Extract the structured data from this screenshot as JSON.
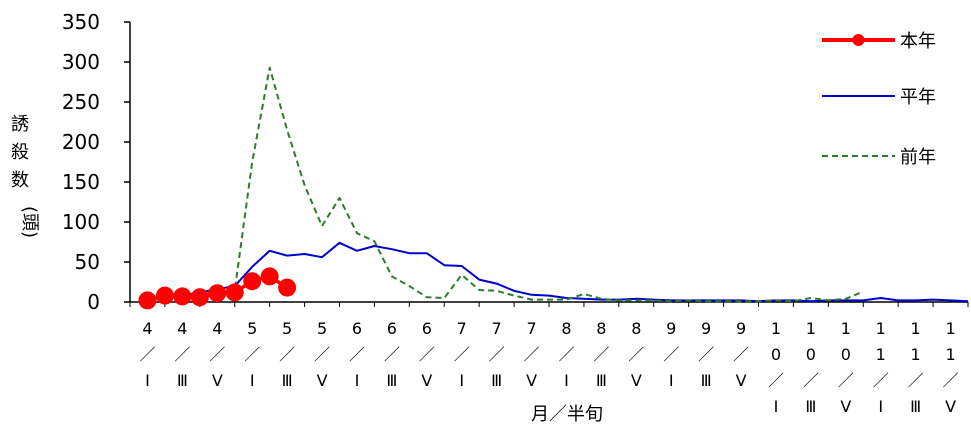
{
  "chart_data": {
    "type": "line",
    "xlabel": "月／半旬",
    "ylabel": "誘殺数(頭)",
    "ylim": [
      0,
      350
    ],
    "yticks": [
      0,
      50,
      100,
      150,
      200,
      250,
      300,
      350
    ],
    "grid": false,
    "legend_position": "top-right",
    "categories": [
      "4/I",
      "4/III",
      "4/V",
      "5/I",
      "5/III",
      "5/V",
      "6/I",
      "6/III",
      "6/V",
      "7/I",
      "7/III",
      "7/V",
      "8/I",
      "8/III",
      "8/V",
      "9/I",
      "9/III",
      "9/V",
      "10/I",
      "10/III",
      "10/V",
      "11/I",
      "11/III",
      "11/V"
    ],
    "category_label_lines": [
      [
        "4",
        "／",
        "Ⅰ"
      ],
      [
        "4",
        "／",
        "Ⅲ"
      ],
      [
        "4",
        "／",
        "Ⅴ"
      ],
      [
        "5",
        "／",
        "Ⅰ"
      ],
      [
        "5",
        "／",
        "Ⅲ"
      ],
      [
        "5",
        "／",
        "Ⅴ"
      ],
      [
        "6",
        "／",
        "Ⅰ"
      ],
      [
        "6",
        "／",
        "Ⅲ"
      ],
      [
        "6",
        "／",
        "Ⅴ"
      ],
      [
        "7",
        "／",
        "Ⅰ"
      ],
      [
        "7",
        "／",
        "Ⅲ"
      ],
      [
        "7",
        "／",
        "Ⅴ"
      ],
      [
        "8",
        "／",
        "Ⅰ"
      ],
      [
        "8",
        "／",
        "Ⅲ"
      ],
      [
        "8",
        "／",
        "Ⅴ"
      ],
      [
        "9",
        "／",
        "Ⅰ"
      ],
      [
        "9",
        "／",
        "Ⅲ"
      ],
      [
        "9",
        "／",
        "Ⅴ"
      ],
      [
        "1",
        "0",
        "／",
        "Ⅰ"
      ],
      [
        "1",
        "0",
        "／",
        "Ⅲ"
      ],
      [
        "1",
        "0",
        "／",
        "Ⅴ"
      ],
      [
        "1",
        "1",
        "／",
        "Ⅰ"
      ],
      [
        "1",
        "1",
        "／",
        "Ⅲ"
      ],
      [
        "1",
        "1",
        "／",
        "Ⅴ"
      ]
    ],
    "series": [
      {
        "name": "本年",
        "color": "#ff0000",
        "style": "line-with-markers",
        "x": [
          0,
          0.5,
          1,
          1.5,
          2,
          2.5,
          3,
          3.5,
          4
        ],
        "values": [
          2,
          8,
          7,
          6,
          11,
          12,
          26,
          32,
          18
        ]
      },
      {
        "name": "平年",
        "color": "#0000cc",
        "style": "solid",
        "x": [
          0,
          0.5,
          1,
          1.5,
          2,
          2.5,
          3,
          3.5,
          4,
          4.5,
          5,
          5.5,
          6,
          6.5,
          7,
          7.5,
          8,
          8.5,
          9,
          9.5,
          10,
          10.5,
          11,
          11.5,
          12,
          12.5,
          13,
          13.5,
          14,
          14.5,
          15,
          15.5,
          16,
          16.5,
          17,
          17.5,
          18,
          18.5,
          19,
          19.5,
          20,
          20.5,
          21,
          21.5,
          22,
          22.5,
          23,
          23.5
        ],
        "values": [
          5,
          6,
          8,
          12,
          16,
          20,
          44,
          64,
          58,
          60,
          56,
          74,
          64,
          70,
          66,
          61,
          61,
          46,
          45,
          28,
          23,
          14,
          9,
          8,
          5,
          4,
          3,
          3,
          4,
          3,
          2,
          2,
          2,
          2,
          2,
          1,
          2,
          2,
          1,
          2,
          2,
          2,
          5,
          2,
          2,
          3,
          2,
          1
        ]
      },
      {
        "name": "前年",
        "color": "#2a7d2a",
        "style": "dashed",
        "x": [
          0,
          0.5,
          1,
          1.5,
          2,
          2.5,
          3,
          3.5,
          4,
          4.5,
          5,
          5.5,
          6,
          6.5,
          7,
          7.5,
          8,
          8.5,
          9,
          9.5,
          10,
          10.5,
          11,
          11.5,
          12,
          12.5,
          13,
          13.5,
          14,
          14.5,
          15,
          15.5,
          16,
          16.5,
          17,
          17.5,
          18,
          18.5,
          19,
          19.5,
          20,
          20.5
        ],
        "values": [
          5,
          6,
          8,
          10,
          12,
          15,
          175,
          293,
          215,
          146,
          95,
          130,
          86,
          76,
          32,
          20,
          6,
          5,
          34,
          15,
          14,
          8,
          3,
          3,
          3,
          10,
          4,
          2,
          2,
          2,
          1,
          2,
          1,
          1,
          1,
          1,
          2,
          1,
          5,
          2,
          4,
          13
        ]
      }
    ]
  }
}
